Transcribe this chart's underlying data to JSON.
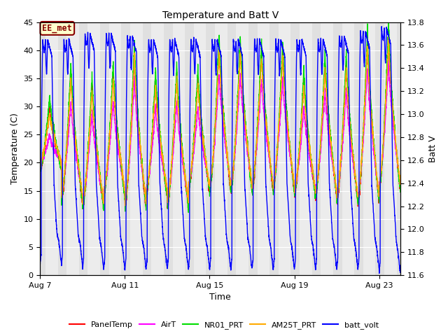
{
  "title": "Temperature and Batt V",
  "xlabel": "Time",
  "ylabel_left": "Temperature (C)",
  "ylabel_right": "Batt V",
  "annotation": "EE_met",
  "xlim_days": [
    7,
    24
  ],
  "ylim_left": [
    0,
    45
  ],
  "ylim_right": [
    11.6,
    13.8
  ],
  "x_ticks_labels": [
    "Aug 7",
    "Aug 11",
    "Aug 15",
    "Aug 19",
    "Aug 23"
  ],
  "x_ticks_positions": [
    7,
    11,
    15,
    19,
    23
  ],
  "y_left_ticks": [
    0,
    5,
    10,
    15,
    20,
    25,
    30,
    35,
    40,
    45
  ],
  "y_right_ticks": [
    11.6,
    11.8,
    12.0,
    12.2,
    12.4,
    12.6,
    12.8,
    13.0,
    13.2,
    13.4,
    13.6,
    13.8
  ],
  "colors": {
    "PanelTemp": "#ff0000",
    "AirT": "#ff00ff",
    "NR01_PRT": "#00dd00",
    "AM25T_PRT": "#ffaa00",
    "batt_volt": "#0000ff"
  },
  "legend_labels": [
    "PanelTemp",
    "AirT",
    "NR01_PRT",
    "AM25T_PRT",
    "batt_volt"
  ],
  "background_color": "#ffffff",
  "plot_bg_color": "#e0e0e0",
  "grid_color": "#ffffff",
  "annotation_bg": "#ffffcc",
  "annotation_border": "#880000",
  "annotation_text_color": "#880000"
}
